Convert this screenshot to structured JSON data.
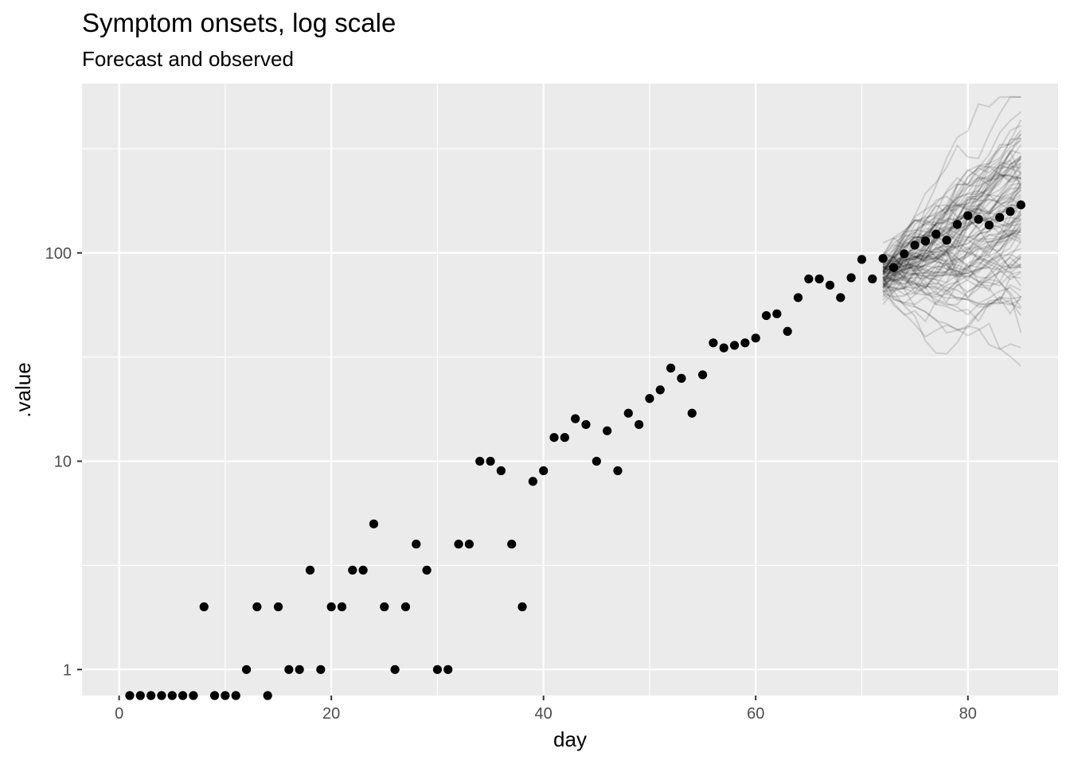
{
  "chart_data": {
    "type": "scatter",
    "title": "Symptom onsets, log scale",
    "subtitle": "Forecast and observed",
    "xlabel": "day",
    "ylabel": ".value",
    "y_scale": "log10",
    "xlim": [
      -3.5,
      88.5
    ],
    "ylim": [
      0.75,
      650
    ],
    "x_ticks": [
      0,
      20,
      40,
      60,
      80
    ],
    "x_tick_labels": [
      "0",
      "20",
      "40",
      "60",
      "80"
    ],
    "y_ticks": [
      1,
      10,
      100
    ],
    "y_tick_labels": [
      "1",
      "10",
      "100"
    ],
    "y_minor_ticks": [
      3.162,
      31.62,
      316.2
    ],
    "x_minor_ticks": [
      10,
      30,
      50,
      70
    ],
    "grid": true,
    "panel_background": "#ebebeb",
    "grid_color": "#ffffff",
    "point_color": "#000000",
    "forecast_line_color": "#000000",
    "forecast_line_opacity": 0.13,
    "forecast_days": [
      72,
      85
    ],
    "forecast_trajectory_count": 100,
    "observed": {
      "x": [
        1,
        2,
        3,
        4,
        5,
        6,
        7,
        8,
        9,
        10,
        11,
        12,
        13,
        14,
        15,
        16,
        17,
        18,
        19,
        20,
        21,
        22,
        23,
        24,
        25,
        26,
        27,
        28,
        29,
        30,
        31,
        32,
        33,
        34,
        35,
        36,
        37,
        38,
        39,
        40,
        41,
        42,
        43,
        44,
        45,
        46,
        47,
        48,
        49,
        50,
        51,
        52,
        53,
        54,
        55,
        56,
        57,
        58,
        59,
        60,
        61,
        62,
        63,
        64,
        65,
        66,
        67,
        68,
        69,
        70,
        71,
        72,
        73,
        74,
        75,
        76,
        77,
        78,
        79,
        80,
        81,
        82,
        83,
        84,
        85
      ],
      "y": [
        0.75,
        0.75,
        0.75,
        0.75,
        0.75,
        0.75,
        0.75,
        2,
        0.75,
        0.75,
        0.75,
        1,
        2,
        0.75,
        2,
        1,
        1,
        3,
        1,
        2,
        2,
        3,
        3,
        5,
        2,
        1,
        2,
        4,
        3,
        1,
        1,
        4,
        4,
        10,
        10,
        9,
        4,
        2,
        8,
        9,
        13,
        13,
        16,
        15,
        10,
        14,
        9,
        17,
        15,
        20,
        22,
        28,
        25,
        17,
        26,
        37,
        35,
        36,
        37,
        39,
        50,
        51,
        42,
        61,
        75,
        75,
        70,
        61,
        76,
        93,
        75,
        94,
        85,
        99,
        109,
        114,
        123,
        115,
        137,
        151,
        145,
        136,
        148,
        158,
        170
      ]
    }
  }
}
